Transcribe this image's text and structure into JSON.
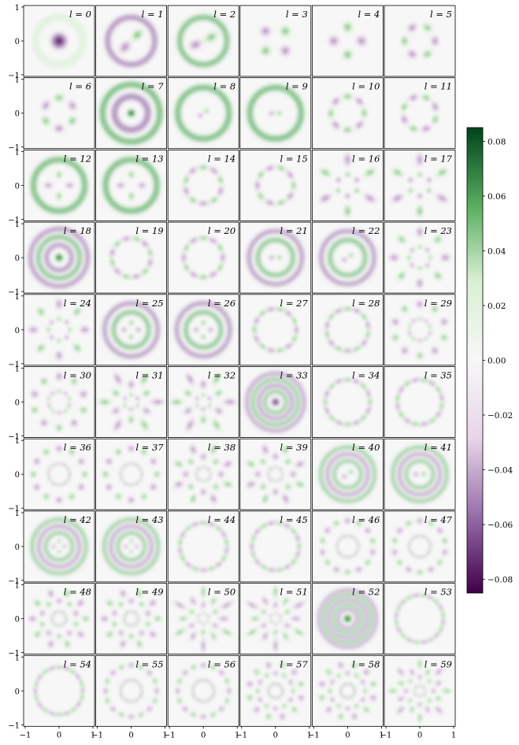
{
  "chart_data": {
    "type": "heatmap",
    "title": "",
    "xlabel": "",
    "ylabel": "",
    "panel_label_prefix": "l = ",
    "panels": [
      {
        "l": 0,
        "pattern": "gaussian-blob",
        "n": 0,
        "rings": 1,
        "center": "purple",
        "sign": -1
      },
      {
        "l": 1,
        "pattern": "dipole",
        "n": 2,
        "rings": 1,
        "sign": 1
      },
      {
        "l": 2,
        "pattern": "dipole",
        "n": 2,
        "rings": 1,
        "sign": 1
      },
      {
        "l": 3,
        "pattern": "angular",
        "n": 4,
        "rings": 1,
        "sign": 1
      },
      {
        "l": 4,
        "pattern": "angular",
        "n": 4,
        "rings": 1,
        "sign": 1
      },
      {
        "l": 5,
        "pattern": "angular",
        "n": 6,
        "rings": 1,
        "sign": 1
      },
      {
        "l": 6,
        "pattern": "angular",
        "n": 6,
        "rings": 1,
        "sign": 1
      },
      {
        "l": 7,
        "pattern": "radial",
        "n": 0,
        "rings": 2,
        "center": "green",
        "sign": 1
      },
      {
        "l": 8,
        "pattern": "mixed",
        "n": 2,
        "rings": 2,
        "sign": 1
      },
      {
        "l": 9,
        "pattern": "mixed",
        "n": 2,
        "rings": 2,
        "sign": 1
      },
      {
        "l": 10,
        "pattern": "angular",
        "n": 8,
        "rings": 1,
        "sign": 1
      },
      {
        "l": 11,
        "pattern": "angular",
        "n": 8,
        "rings": 1,
        "sign": 1
      },
      {
        "l": 12,
        "pattern": "mixed",
        "n": 4,
        "rings": 2,
        "sign": 1
      },
      {
        "l": 13,
        "pattern": "mixed",
        "n": 4,
        "rings": 2,
        "sign": 1
      },
      {
        "l": 14,
        "pattern": "angular",
        "n": 10,
        "rings": 1,
        "sign": 1
      },
      {
        "l": 15,
        "pattern": "angular",
        "n": 10,
        "rings": 1,
        "sign": 1
      },
      {
        "l": 16,
        "pattern": "mixed",
        "n": 6,
        "rings": 2,
        "sign": 1
      },
      {
        "l": 17,
        "pattern": "mixed",
        "n": 6,
        "rings": 2,
        "sign": 1
      },
      {
        "l": 18,
        "pattern": "radial",
        "n": 0,
        "rings": 3,
        "center": "green",
        "sign": 1
      },
      {
        "l": 19,
        "pattern": "angular",
        "n": 12,
        "rings": 1,
        "sign": 1
      },
      {
        "l": 20,
        "pattern": "angular",
        "n": 12,
        "rings": 1,
        "sign": 1
      },
      {
        "l": 21,
        "pattern": "mixed",
        "n": 2,
        "rings": 3,
        "sign": 1
      },
      {
        "l": 22,
        "pattern": "mixed",
        "n": 2,
        "rings": 3,
        "sign": 1
      },
      {
        "l": 23,
        "pattern": "mixed",
        "n": 8,
        "rings": 2,
        "sign": 1
      },
      {
        "l": 24,
        "pattern": "mixed",
        "n": 8,
        "rings": 2,
        "sign": 1
      },
      {
        "l": 25,
        "pattern": "mixed",
        "n": 4,
        "rings": 3,
        "sign": 1
      },
      {
        "l": 26,
        "pattern": "mixed",
        "n": 4,
        "rings": 3,
        "sign": 1
      },
      {
        "l": 27,
        "pattern": "angular",
        "n": 14,
        "rings": 1,
        "sign": 1
      },
      {
        "l": 28,
        "pattern": "angular",
        "n": 14,
        "rings": 1,
        "sign": 1
      },
      {
        "l": 29,
        "pattern": "mixed",
        "n": 10,
        "rings": 2,
        "sign": 1
      },
      {
        "l": 30,
        "pattern": "mixed",
        "n": 10,
        "rings": 2,
        "sign": 1
      },
      {
        "l": 31,
        "pattern": "mixed",
        "n": 6,
        "rings": 3,
        "sign": 1
      },
      {
        "l": 32,
        "pattern": "mixed",
        "n": 6,
        "rings": 3,
        "sign": 1
      },
      {
        "l": 33,
        "pattern": "radial",
        "n": 0,
        "rings": 4,
        "center": "purple",
        "sign": -1
      },
      {
        "l": 34,
        "pattern": "angular",
        "n": 16,
        "rings": 1,
        "sign": 1
      },
      {
        "l": 35,
        "pattern": "angular",
        "n": 16,
        "rings": 1,
        "sign": 1
      },
      {
        "l": 36,
        "pattern": "mixed",
        "n": 12,
        "rings": 2,
        "sign": 1
      },
      {
        "l": 37,
        "pattern": "mixed",
        "n": 12,
        "rings": 2,
        "sign": 1
      },
      {
        "l": 38,
        "pattern": "mixed",
        "n": 8,
        "rings": 3,
        "sign": 1
      },
      {
        "l": 39,
        "pattern": "mixed",
        "n": 8,
        "rings": 3,
        "sign": 1
      },
      {
        "l": 40,
        "pattern": "mixed",
        "n": 2,
        "rings": 4,
        "sign": -1
      },
      {
        "l": 41,
        "pattern": "mixed",
        "n": 2,
        "rings": 4,
        "sign": -1
      },
      {
        "l": 42,
        "pattern": "mixed",
        "n": 4,
        "rings": 4,
        "sign": 1
      },
      {
        "l": 43,
        "pattern": "mixed",
        "n": 4,
        "rings": 4,
        "sign": 1
      },
      {
        "l": 44,
        "pattern": "angular",
        "n": 18,
        "rings": 1,
        "sign": 1
      },
      {
        "l": 45,
        "pattern": "angular",
        "n": 18,
        "rings": 1,
        "sign": 1
      },
      {
        "l": 46,
        "pattern": "mixed",
        "n": 14,
        "rings": 2,
        "sign": 1
      },
      {
        "l": 47,
        "pattern": "mixed",
        "n": 14,
        "rings": 2,
        "sign": 1
      },
      {
        "l": 48,
        "pattern": "mixed",
        "n": 10,
        "rings": 3,
        "sign": 1
      },
      {
        "l": 49,
        "pattern": "mixed",
        "n": 10,
        "rings": 3,
        "sign": 1
      },
      {
        "l": 50,
        "pattern": "mixed",
        "n": 6,
        "rings": 4,
        "sign": 1
      },
      {
        "l": 51,
        "pattern": "mixed",
        "n": 6,
        "rings": 4,
        "sign": 1
      },
      {
        "l": 52,
        "pattern": "radial",
        "n": 0,
        "rings": 5,
        "center": "green",
        "sign": 1
      },
      {
        "l": 53,
        "pattern": "angular",
        "n": 20,
        "rings": 1,
        "sign": 1
      },
      {
        "l": 54,
        "pattern": "angular",
        "n": 20,
        "rings": 1,
        "sign": 1
      },
      {
        "l": 55,
        "pattern": "mixed",
        "n": 16,
        "rings": 2,
        "sign": 1
      },
      {
        "l": 56,
        "pattern": "mixed",
        "n": 16,
        "rings": 2,
        "sign": 1
      },
      {
        "l": 57,
        "pattern": "mixed",
        "n": 12,
        "rings": 3,
        "sign": 1
      },
      {
        "l": 58,
        "pattern": "mixed",
        "n": 12,
        "rings": 3,
        "sign": 1
      },
      {
        "l": 59,
        "pattern": "mixed",
        "n": 8,
        "rings": 4,
        "sign": 1
      }
    ],
    "grid": {
      "rows": 10,
      "cols": 6
    },
    "x_range": [
      -1,
      1
    ],
    "y_range": [
      -1,
      1
    ],
    "x_ticks": [
      -1,
      0,
      1
    ],
    "y_ticks": [
      1,
      0,
      -1
    ],
    "x_tick_labels": [
      "−1",
      "0",
      "1"
    ],
    "y_tick_labels": [
      "1",
      "0",
      "−1"
    ],
    "colorbar": {
      "colormap": "PRGn",
      "vmin": -0.085,
      "vmax": 0.085,
      "ticks": [
        0.08,
        0.06,
        0.04,
        0.02,
        0.0,
        -0.02,
        -0.04,
        -0.06,
        -0.08
      ],
      "tick_labels": [
        "0.08",
        "0.06",
        "0.04",
        "0.02",
        "0.00",
        "−0.02",
        "−0.04",
        "−0.06",
        "−0.08"
      ]
    },
    "colors": {
      "max": "#00441b",
      "mid_high": "#5aae61",
      "light_high": "#d9f0d3",
      "zero": "#f7f7f7",
      "light_low": "#e7d4e8",
      "mid_low": "#9970ab",
      "min": "#40004b"
    }
  }
}
